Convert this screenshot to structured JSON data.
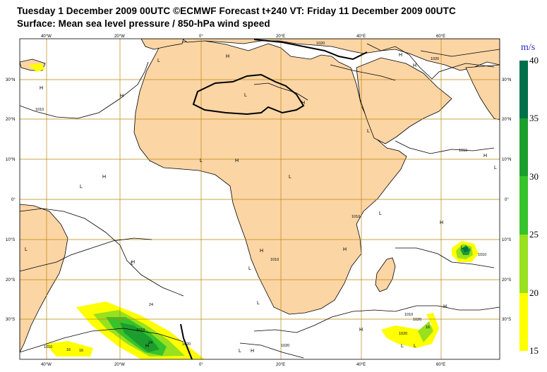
{
  "header": {
    "line1": "Tuesday 1 December 2009 00UTC ©ECMWF Forecast t+240 VT: Friday 11 December 2009 00UTC",
    "line2": "Surface: Mean sea level pressure / 850-hPa wind speed"
  },
  "map": {
    "lon_labels": [
      "40°W",
      "20°W",
      "0°",
      "20°E",
      "40°E",
      "60°E"
    ],
    "lat_labels": [
      "30°N",
      "20°N",
      "10°N",
      "0°",
      "10°S",
      "20°S",
      "30°S"
    ],
    "pressure_centers": [
      "L",
      "H",
      "L",
      "H",
      "L",
      "H",
      "H",
      "L",
      "H",
      "H",
      "L",
      "L",
      "H",
      "L",
      "H",
      "H",
      "H",
      "L",
      "L",
      "H",
      "L",
      "H",
      "L",
      "L",
      "H",
      "H",
      "L",
      "H",
      "L",
      "L",
      "H",
      "H",
      "L"
    ],
    "isobar_labels": [
      "1020",
      "1020",
      "1010",
      "1010",
      "1010",
      "1010",
      "1010",
      "1010",
      "1020",
      "1020",
      "1010",
      "1010",
      "1020",
      "1020"
    ],
    "wind_labels": [
      "16",
      "24",
      "16",
      "24",
      "16"
    ],
    "colors": {
      "land": "#fcd5a5",
      "grid": "#b8860b",
      "ocean": "#ffffff"
    }
  },
  "legend": {
    "unit": "m/s",
    "ticks": [
      "40",
      "35",
      "30",
      "25",
      "20",
      "15"
    ],
    "bands": [
      {
        "from": 35,
        "to": 40,
        "color": "#00704a"
      },
      {
        "from": 30,
        "to": 35,
        "color": "#1c9e2e"
      },
      {
        "from": 25,
        "to": 30,
        "color": "#37c32b"
      },
      {
        "from": 20,
        "to": 25,
        "color": "#99e01e"
      },
      {
        "from": 15,
        "to": 20,
        "color": "#ffff00"
      }
    ]
  }
}
